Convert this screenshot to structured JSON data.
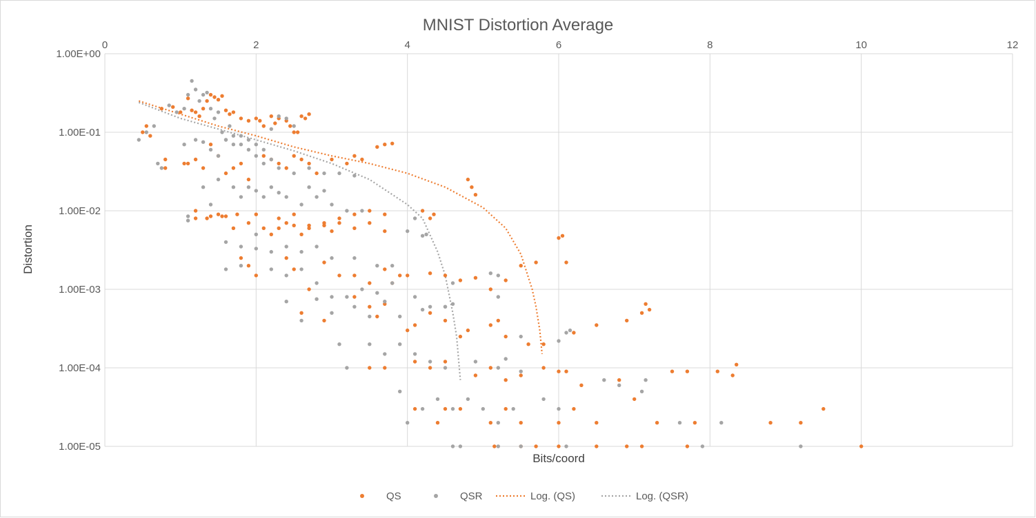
{
  "chart_data": {
    "type": "scatter",
    "title": "MNIST Distortion Average",
    "xlabel": "Bits/coord",
    "ylabel": "Distortion",
    "xlim": [
      0,
      12
    ],
    "ylim": [
      1e-05,
      1
    ],
    "y_scale": "log",
    "grid": true,
    "legend_position": "bottom",
    "x_ticks": [
      "0",
      "2",
      "4",
      "6",
      "8",
      "10",
      "12"
    ],
    "y_ticks": [
      "1.00E+00",
      "1.00E-01",
      "1.00E-02",
      "1.00E-03",
      "1.00E-04",
      "1.00E-05"
    ],
    "legend": [
      "QS",
      "QSR",
      "Log. (QS)",
      "Log. (QSR)"
    ],
    "colors": {
      "QS": "#ed7d31",
      "QSR": "#a5a5a5"
    },
    "series": [
      {
        "name": "QS",
        "kind": "points",
        "x": [
          0.5,
          0.55,
          0.6,
          0.75,
          0.8,
          0.8,
          0.9,
          1.0,
          1.05,
          1.1,
          1.15,
          1.2,
          1.25,
          1.3,
          1.35,
          1.4,
          1.45,
          1.5,
          1.55,
          1.6,
          1.65,
          1.7,
          1.8,
          1.9,
          2.0,
          2.05,
          2.1,
          2.2,
          2.25,
          2.3,
          2.4,
          2.45,
          2.5,
          2.55,
          2.6,
          2.65,
          2.7,
          1.1,
          1.2,
          1.3,
          1.4,
          1.5,
          1.6,
          1.7,
          1.8,
          1.9,
          2.1,
          2.2,
          2.3,
          2.4,
          2.5,
          2.6,
          2.7,
          2.8,
          3.0,
          3.2,
          3.3,
          3.4,
          3.6,
          3.7,
          3.8,
          1.2,
          1.4,
          1.5,
          1.6,
          1.7,
          1.8,
          1.9,
          2.0,
          2.1,
          2.2,
          2.3,
          2.4,
          2.5,
          2.6,
          2.7,
          2.9,
          3.1,
          3.3,
          3.5,
          3.7,
          1.2,
          1.35,
          1.55,
          1.75,
          2.3,
          2.5,
          2.7,
          2.9,
          3.0,
          3.1,
          3.3,
          3.5,
          3.7,
          4.2,
          4.3,
          4.35,
          4.8,
          4.85,
          4.9,
          1.9,
          2.0,
          2.4,
          2.5,
          2.7,
          2.9,
          3.1,
          3.3,
          3.5,
          3.7,
          3.8,
          3.9,
          4.0,
          4.3,
          4.5,
          4.7,
          4.9,
          5.1,
          5.3,
          5.5,
          5.7,
          6.0,
          6.05,
          6.1,
          2.6,
          2.9,
          3.3,
          3.5,
          3.6,
          3.7,
          4.0,
          4.1,
          4.3,
          4.5,
          4.7,
          4.8,
          5.1,
          5.2,
          5.3,
          5.6,
          5.8,
          6.2,
          6.5,
          6.9,
          7.1,
          7.15,
          7.2,
          3.5,
          3.7,
          4.1,
          4.3,
          4.5,
          4.9,
          5.1,
          5.3,
          5.5,
          5.8,
          6.0,
          6.1,
          6.3,
          6.8,
          7.5,
          7.7,
          8.1,
          8.3,
          8.35,
          4.1,
          4.4,
          4.5,
          4.7,
          5.1,
          5.3,
          5.5,
          6.0,
          6.2,
          6.5,
          7.0,
          7.3,
          7.8,
          8.8,
          9.2,
          9.5,
          5.15,
          5.5,
          5.7,
          6.0,
          6.5,
          6.9,
          7.1,
          7.7,
          10.0
        ],
        "y": [
          0.1,
          0.12,
          0.09,
          0.2,
          0.045,
          0.035,
          0.21,
          0.18,
          0.04,
          0.27,
          0.19,
          0.18,
          0.16,
          0.2,
          0.25,
          0.3,
          0.28,
          0.26,
          0.29,
          0.19,
          0.17,
          0.18,
          0.15,
          0.14,
          0.15,
          0.14,
          0.12,
          0.16,
          0.13,
          0.15,
          0.14,
          0.12,
          0.1,
          0.1,
          0.16,
          0.15,
          0.17,
          0.04,
          0.045,
          0.035,
          0.07,
          0.05,
          0.03,
          0.035,
          0.04,
          0.025,
          0.05,
          0.045,
          0.04,
          0.035,
          0.05,
          0.045,
          0.04,
          0.03,
          0.045,
          0.04,
          0.05,
          0.045,
          0.065,
          0.07,
          0.072,
          0.008,
          0.0085,
          0.009,
          0.0085,
          0.006,
          0.0025,
          0.007,
          0.009,
          0.006,
          0.005,
          0.006,
          0.007,
          0.0065,
          0.005,
          0.006,
          0.007,
          0.008,
          0.009,
          0.01,
          0.009,
          0.01,
          0.008,
          0.0085,
          0.009,
          0.008,
          0.009,
          0.0065,
          0.0065,
          0.0055,
          0.007,
          0.006,
          0.007,
          0.0055,
          0.01,
          0.008,
          0.009,
          0.025,
          0.02,
          0.016,
          0.002,
          0.0015,
          0.0025,
          0.0018,
          0.001,
          0.0022,
          0.0015,
          0.0015,
          0.0012,
          0.0018,
          0.0012,
          0.0015,
          0.0015,
          0.0016,
          0.0015,
          0.0013,
          0.0014,
          0.001,
          0.0013,
          0.002,
          0.0022,
          0.0045,
          0.0048,
          0.0022,
          0.0005,
          0.0004,
          0.0008,
          0.0006,
          0.00045,
          0.00065,
          0.0003,
          0.00035,
          0.0005,
          0.0004,
          0.00025,
          0.0003,
          0.00035,
          0.0004,
          0.00025,
          0.0002,
          0.0002,
          0.00028,
          0.00035,
          0.0004,
          0.0005,
          0.00065,
          0.00055,
          0.0001,
          0.0001,
          0.00012,
          0.0001,
          0.00012,
          8e-05,
          0.0001,
          7e-05,
          8e-05,
          0.0001,
          9e-05,
          9e-05,
          6e-05,
          7e-05,
          9e-05,
          9e-05,
          9e-05,
          8e-05,
          0.00011,
          3e-05,
          2e-05,
          3e-05,
          3e-05,
          2e-05,
          3e-05,
          2e-05,
          2e-05,
          3e-05,
          2e-05,
          4e-05,
          2e-05,
          2e-05,
          2e-05,
          2e-05,
          3e-05,
          1e-05,
          1e-05,
          1e-05,
          1e-05,
          1e-05,
          1e-05,
          1e-05,
          1e-05,
          1e-05
        ]
      },
      {
        "name": "QSR",
        "kind": "points",
        "x": [
          0.45,
          0.55,
          0.65,
          0.7,
          0.75,
          0.85,
          0.95,
          1.05,
          1.1,
          1.15,
          1.2,
          1.25,
          1.3,
          1.35,
          1.4,
          1.45,
          1.5,
          1.55,
          1.6,
          1.65,
          1.7,
          1.8,
          1.9,
          2.0,
          2.1,
          2.2,
          2.3,
          2.4,
          2.5,
          1.05,
          1.2,
          1.3,
          1.4,
          1.5,
          1.6,
          1.7,
          1.8,
          1.9,
          2.0,
          2.1,
          2.2,
          2.3,
          2.5,
          2.7,
          2.9,
          3.1,
          3.3,
          1.1,
          1.3,
          1.5,
          1.7,
          1.8,
          1.9,
          2.0,
          2.1,
          2.2,
          2.3,
          2.4,
          2.6,
          2.7,
          2.8,
          2.9,
          3.0,
          3.2,
          3.4,
          1.1,
          1.4,
          1.6,
          1.8,
          2.0,
          2.2,
          2.4,
          2.6,
          2.8,
          3.0,
          3.3,
          3.6,
          3.8,
          4.0,
          4.1,
          4.2,
          4.25,
          1.6,
          1.8,
          2.0,
          2.2,
          2.4,
          2.6,
          2.8,
          3.0,
          3.2,
          3.4,
          3.6,
          3.8,
          4.1,
          4.3,
          4.5,
          4.6,
          5.1,
          5.2,
          2.4,
          2.6,
          2.8,
          3.0,
          3.3,
          3.5,
          3.7,
          3.9,
          4.2,
          4.5,
          4.6,
          5.2,
          5.5,
          6.0,
          6.1,
          6.15,
          3.1,
          3.2,
          3.5,
          3.7,
          3.9,
          4.1,
          4.3,
          4.5,
          4.9,
          5.2,
          5.3,
          5.5,
          6.6,
          6.8,
          7.1,
          7.15,
          3.9,
          4.0,
          4.2,
          4.4,
          4.6,
          4.8,
          5.0,
          5.2,
          5.4,
          5.8,
          6.0,
          7.6,
          8.15,
          4.6,
          4.7,
          5.2,
          5.5,
          6.1,
          7.9,
          9.2
        ],
        "y": [
          0.08,
          0.1,
          0.12,
          0.04,
          0.035,
          0.22,
          0.18,
          0.2,
          0.3,
          0.45,
          0.35,
          0.25,
          0.3,
          0.32,
          0.2,
          0.15,
          0.18,
          0.1,
          0.08,
          0.12,
          0.09,
          0.07,
          0.08,
          0.07,
          0.06,
          0.11,
          0.16,
          0.15,
          0.12,
          0.07,
          0.08,
          0.075,
          0.06,
          0.05,
          0.08,
          0.07,
          0.09,
          0.06,
          0.05,
          0.04,
          0.045,
          0.035,
          0.03,
          0.035,
          0.03,
          0.03,
          0.028,
          0.0085,
          0.02,
          0.025,
          0.02,
          0.015,
          0.02,
          0.018,
          0.015,
          0.02,
          0.017,
          0.015,
          0.012,
          0.02,
          0.015,
          0.018,
          0.012,
          0.01,
          0.01,
          0.0075,
          0.012,
          0.004,
          0.0035,
          0.005,
          0.003,
          0.0035,
          0.003,
          0.0035,
          0.0025,
          0.0025,
          0.002,
          0.002,
          0.0055,
          0.008,
          0.0048,
          0.005,
          0.0018,
          0.002,
          0.0033,
          0.0018,
          0.0015,
          0.0018,
          0.0012,
          0.0008,
          0.0008,
          0.001,
          0.0009,
          0.0012,
          0.0008,
          0.0006,
          0.0006,
          0.0012,
          0.0016,
          0.0015,
          0.0007,
          0.0004,
          0.00075,
          0.0005,
          0.0006,
          0.00045,
          0.0007,
          0.00045,
          0.00055,
          0.0006,
          0.00065,
          0.0008,
          0.00025,
          0.00022,
          0.00028,
          0.0003,
          0.0002,
          0.0001,
          0.0002,
          0.00015,
          0.0002,
          0.00015,
          0.00012,
          0.0001,
          0.00012,
          0.0001,
          0.00013,
          9e-05,
          7e-05,
          6e-05,
          5e-05,
          7e-05,
          5e-05,
          2e-05,
          3e-05,
          4e-05,
          3e-05,
          4e-05,
          3e-05,
          2e-05,
          3e-05,
          4e-05,
          3e-05,
          2e-05,
          2e-05,
          1e-05,
          1e-05,
          1e-05,
          1e-05,
          1e-05,
          1e-05,
          1e-05
        ]
      },
      {
        "name": "Log. (QS)",
        "kind": "trendline",
        "x": [
          0.45,
          1.0,
          1.5,
          2.0,
          2.5,
          3.0,
          3.5,
          4.0,
          4.5,
          5.0,
          5.3,
          5.5,
          5.65,
          5.7,
          5.75,
          5.78
        ],
        "y": [
          0.25,
          0.17,
          0.12,
          0.09,
          0.065,
          0.05,
          0.04,
          0.03,
          0.02,
          0.011,
          0.006,
          0.0028,
          0.001,
          0.0006,
          0.0003,
          0.00015
        ]
      },
      {
        "name": "Log. (QSR)",
        "kind": "trendline",
        "x": [
          0.45,
          1.0,
          1.5,
          2.0,
          2.5,
          3.0,
          3.5,
          4.0,
          4.2,
          4.4,
          4.5,
          4.6,
          4.65,
          4.7
        ],
        "y": [
          0.24,
          0.15,
          0.11,
          0.08,
          0.058,
          0.04,
          0.025,
          0.012,
          0.008,
          0.003,
          0.0015,
          0.0005,
          0.00025,
          7e-05
        ]
      }
    ]
  }
}
